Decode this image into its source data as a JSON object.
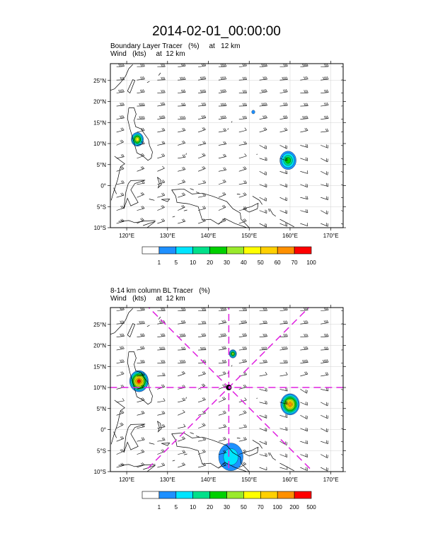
{
  "title": "2014-02-01_00:00:00",
  "colors": {
    "coast": "#000000",
    "grid": "#d0d0d0",
    "cross_section": "#e020e0",
    "palette1": [
      "#ffffff",
      "#1e90ff",
      "#00e5ff",
      "#00e08a",
      "#00d000",
      "#9aea2c",
      "#ffff00",
      "#ffd000",
      "#ff9000",
      "#ff0000"
    ],
    "palette2": [
      "#ffffff",
      "#1e90ff",
      "#00e5ff",
      "#00e08a",
      "#00d000",
      "#9aea2c",
      "#ffff00",
      "#ffd000",
      "#ff9000",
      "#ff0000"
    ]
  },
  "chart_data": [
    {
      "type": "contour-map",
      "title_line1": "Boundary Layer Tracer   (%)     at   12 km",
      "title_line2": "Wind   (kts)     at  12 km",
      "x_range": [
        116,
        173
      ],
      "y_range": [
        -10,
        29
      ],
      "xticks": [
        120,
        130,
        140,
        150,
        160,
        170
      ],
      "xtick_labels": [
        "120°E",
        "130°E",
        "140°E",
        "150°E",
        "160°E",
        "170°E"
      ],
      "yticks": [
        -10,
        -5,
        0,
        5,
        10,
        15,
        20,
        25
      ],
      "ytick_labels": [
        "10°S",
        "5°S",
        "0°",
        "5°N",
        "10°N",
        "15°N",
        "20°N",
        "25°N"
      ],
      "colorbar_labels": [
        "1",
        "5",
        "10",
        "20",
        "30",
        "40",
        "50",
        "60",
        "70",
        "100"
      ],
      "blobs": [
        {
          "lon": 122.6,
          "lat": 11.0,
          "r": 1.5,
          "level": 6
        },
        {
          "lon": 159.5,
          "lat": 6.0,
          "r": 2.0,
          "level": 4
        },
        {
          "lon": 151.0,
          "lat": 17.5,
          "r": 0.4,
          "level": 1
        }
      ]
    },
    {
      "type": "contour-map",
      "title_line1": "8-14 km column BL Tracer   (%)",
      "title_line2": "Wind   (kts)     at  12 km",
      "x_range": [
        116,
        173
      ],
      "y_range": [
        -10,
        29
      ],
      "xticks": [
        120,
        130,
        140,
        150,
        160,
        170
      ],
      "xtick_labels": [
        "120°E",
        "130°E",
        "140°E",
        "150°E",
        "160°E",
        "170°E"
      ],
      "yticks": [
        -10,
        -5,
        0,
        5,
        10,
        15,
        20,
        25
      ],
      "ytick_labels": [
        "10°S",
        "5°S",
        "0°",
        "5°N",
        "10°N",
        "15°N",
        "20°N",
        "25°N"
      ],
      "colorbar_labels": [
        "1",
        "5",
        "10",
        "20",
        "30",
        "50",
        "70",
        "100",
        "200",
        "500"
      ],
      "center": {
        "lon": 145.0,
        "lat": 10.0
      },
      "blobs": [
        {
          "lon": 123.0,
          "lat": 11.5,
          "r": 2.3,
          "level": 9
        },
        {
          "lon": 160.0,
          "lat": 6.0,
          "r": 2.3,
          "level": 8
        },
        {
          "lon": 146.0,
          "lat": 18.0,
          "r": 0.9,
          "level": 5
        },
        {
          "lon": 145.5,
          "lat": -6.5,
          "r": 3.0,
          "level": 2
        }
      ]
    }
  ]
}
